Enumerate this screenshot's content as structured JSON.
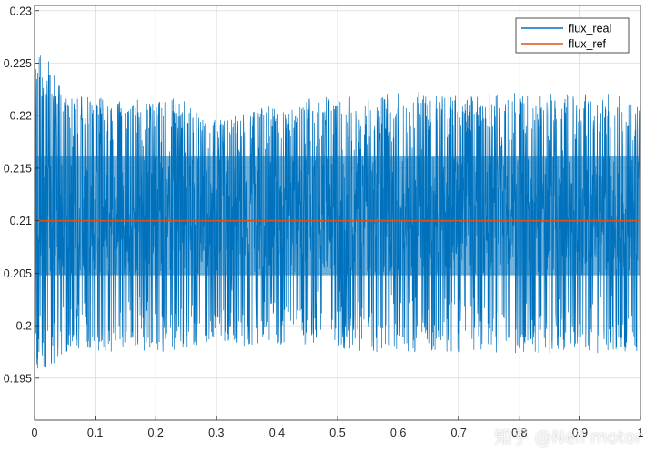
{
  "chart_data": {
    "type": "line",
    "title": "",
    "xlabel": "",
    "ylabel": "",
    "xlim": [
      0,
      1
    ],
    "ylim": [
      0.191,
      0.2305
    ],
    "xticks": [
      "0",
      "0.1",
      "0.2",
      "0.3",
      "0.4",
      "0.5",
      "0.6",
      "0.7",
      "0.8",
      "0.9",
      "1"
    ],
    "yticks": [
      "0.195",
      "0.2",
      "0.205",
      "0.21",
      "0.215",
      "0.22",
      "0.225",
      "0.23"
    ],
    "grid": true,
    "legend_position": "top-right",
    "series": [
      {
        "name": "flux_real",
        "color": "#0072bd",
        "style": "high-frequency oscillation about 0.21",
        "center": 0.21,
        "dense_band": [
          0.2048,
          0.2162
        ],
        "envelope_points": [
          {
            "x": 0.0,
            "max": 0.2262,
            "min": 0.1955
          },
          {
            "x": 0.02,
            "max": 0.2259,
            "min": 0.1957
          },
          {
            "x": 0.05,
            "max": 0.222,
            "min": 0.1975
          },
          {
            "x": 0.1,
            "max": 0.2218,
            "min": 0.1972
          },
          {
            "x": 0.15,
            "max": 0.2215,
            "min": 0.1978
          },
          {
            "x": 0.2,
            "max": 0.2218,
            "min": 0.1973
          },
          {
            "x": 0.25,
            "max": 0.2216,
            "min": 0.1979
          },
          {
            "x": 0.3,
            "max": 0.2195,
            "min": 0.1985
          },
          {
            "x": 0.35,
            "max": 0.2204,
            "min": 0.1979
          },
          {
            "x": 0.4,
            "max": 0.2212,
            "min": 0.1981
          },
          {
            "x": 0.45,
            "max": 0.2217,
            "min": 0.1982
          },
          {
            "x": 0.5,
            "max": 0.222,
            "min": 0.1978
          },
          {
            "x": 0.55,
            "max": 0.2216,
            "min": 0.1975
          },
          {
            "x": 0.6,
            "max": 0.2225,
            "min": 0.1972
          },
          {
            "x": 0.65,
            "max": 0.2222,
            "min": 0.1976
          },
          {
            "x": 0.7,
            "max": 0.2224,
            "min": 0.1974
          },
          {
            "x": 0.75,
            "max": 0.2222,
            "min": 0.1975
          },
          {
            "x": 0.8,
            "max": 0.2224,
            "min": 0.1973
          },
          {
            "x": 0.85,
            "max": 0.2221,
            "min": 0.1974
          },
          {
            "x": 0.9,
            "max": 0.2222,
            "min": 0.1975
          },
          {
            "x": 0.95,
            "max": 0.2221,
            "min": 0.1972
          },
          {
            "x": 1.0,
            "max": 0.2218,
            "min": 0.1972
          }
        ]
      },
      {
        "name": "flux_ref",
        "color": "#d95319",
        "x": [
          0,
          1
        ],
        "values": [
          0.21,
          0.21
        ]
      }
    ]
  },
  "watermark": "知乎 @Neil motor"
}
